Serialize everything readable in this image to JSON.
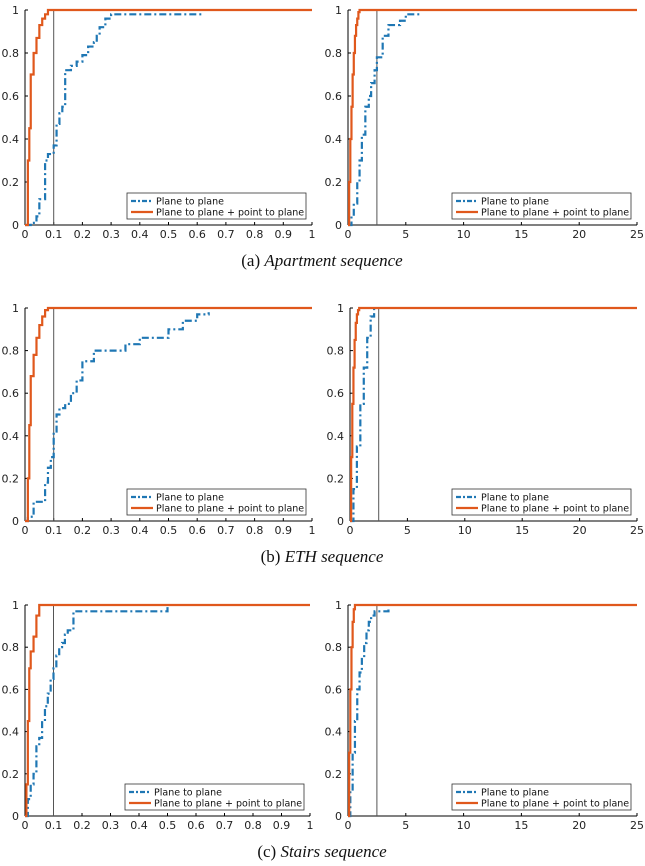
{
  "colors": {
    "series1": "#1f77b4",
    "series2": "#e0581c",
    "vline": "#555555"
  },
  "captions": [
    {
      "label": "(a)",
      "text": "Apartment sequence"
    },
    {
      "label": "(b)",
      "text": "ETH sequence"
    },
    {
      "label": "(c)",
      "text": "Stairs sequence"
    }
  ],
  "chart_data": [
    {
      "type": "line",
      "xlim": [
        0,
        1
      ],
      "ylim": [
        0,
        1
      ],
      "xticks": [
        "0",
        "0.1",
        "0.2",
        "0.3",
        "0.4",
        "0.5",
        "0.6",
        "0.7",
        "0.8",
        "0.9",
        "1"
      ],
      "yticks": [
        "0",
        "0.2",
        "0.4",
        "0.6",
        "0.8",
        "1"
      ],
      "threshold": 0.1,
      "legend_position": "bottom-right",
      "series": [
        {
          "name": "Plane to plane",
          "style": "dashdot",
          "x": [
            0,
            0.02,
            0.04,
            0.05,
            0.07,
            0.08,
            0.1,
            0.11,
            0.12,
            0.13,
            0.14,
            0.16,
            0.18,
            0.2,
            0.22,
            0.24,
            0.25,
            0.26,
            0.28,
            0.3,
            0.35,
            0.45,
            0.55,
            0.62
          ],
          "y": [
            0,
            0.01,
            0.04,
            0.12,
            0.3,
            0.33,
            0.37,
            0.47,
            0.52,
            0.55,
            0.72,
            0.74,
            0.76,
            0.79,
            0.83,
            0.85,
            0.88,
            0.92,
            0.96,
            0.98,
            0.98,
            0.98,
            0.98,
            0.98
          ]
        },
        {
          "name": "Plane to plane + point to plane",
          "style": "solid",
          "x": [
            0,
            0.01,
            0.015,
            0.02,
            0.03,
            0.04,
            0.05,
            0.06,
            0.07,
            0.08,
            0.09,
            1
          ],
          "y": [
            0,
            0.3,
            0.45,
            0.7,
            0.8,
            0.87,
            0.93,
            0.96,
            0.98,
            1,
            1,
            1
          ]
        }
      ]
    },
    {
      "type": "line",
      "xlim": [
        0,
        25
      ],
      "ylim": [
        0,
        1
      ],
      "xticks": [
        "0",
        "5",
        "10",
        "15",
        "20",
        "25"
      ],
      "yticks": [
        "0",
        "0.2",
        "0.4",
        "0.6",
        "0.8",
        "1"
      ],
      "threshold": 2.5,
      "legend_position": "bottom-right",
      "series": [
        {
          "name": "Plane to plane",
          "style": "dashdot",
          "x": [
            0,
            0.3,
            0.5,
            0.8,
            1.0,
            1.2,
            1.5,
            1.8,
            2.0,
            2.3,
            2.5,
            3.0,
            3.5,
            4.0,
            4.5,
            5.0,
            5.5,
            6.2
          ],
          "y": [
            0,
            0.04,
            0.1,
            0.2,
            0.3,
            0.42,
            0.55,
            0.6,
            0.66,
            0.72,
            0.78,
            0.88,
            0.93,
            0.93,
            0.95,
            0.98,
            0.98,
            0.98
          ]
        },
        {
          "name": "Plane to plane + point to plane",
          "style": "solid",
          "x": [
            0,
            0.1,
            0.2,
            0.3,
            0.4,
            0.5,
            0.6,
            0.7,
            0.8,
            0.9,
            1.0,
            1.2,
            25
          ],
          "y": [
            0,
            0.2,
            0.4,
            0.55,
            0.7,
            0.8,
            0.88,
            0.93,
            0.96,
            0.99,
            1,
            1,
            1
          ]
        }
      ]
    },
    {
      "type": "line",
      "xlim": [
        0,
        1
      ],
      "ylim": [
        0,
        1
      ],
      "xticks": [
        "0",
        "0.1",
        "0.2",
        "0.3",
        "0.4",
        "0.5",
        "0.6",
        "0.7",
        "0.8",
        "0.9",
        "1"
      ],
      "yticks": [
        "0",
        "0.2",
        "0.4",
        "0.6",
        "0.8",
        "1"
      ],
      "threshold": 0.1,
      "legend_position": "bottom-right",
      "series": [
        {
          "name": "Plane to plane",
          "style": "dashdot",
          "x": [
            0,
            0.01,
            0.03,
            0.05,
            0.07,
            0.08,
            0.09,
            0.1,
            0.11,
            0.12,
            0.14,
            0.16,
            0.18,
            0.2,
            0.24,
            0.3,
            0.35,
            0.4,
            0.45,
            0.5,
            0.55,
            0.6,
            0.64
          ],
          "y": [
            0,
            0.02,
            0.09,
            0.09,
            0.18,
            0.25,
            0.3,
            0.42,
            0.5,
            0.53,
            0.55,
            0.6,
            0.66,
            0.75,
            0.8,
            0.8,
            0.83,
            0.86,
            0.86,
            0.9,
            0.94,
            0.97,
            0.98
          ]
        },
        {
          "name": "Plane to plane + point to plane",
          "style": "solid",
          "x": [
            0,
            0.01,
            0.015,
            0.02,
            0.03,
            0.04,
            0.05,
            0.06,
            0.07,
            0.08,
            0.09,
            1
          ],
          "y": [
            0,
            0.2,
            0.45,
            0.68,
            0.78,
            0.86,
            0.92,
            0.96,
            0.99,
            1,
            1,
            1
          ]
        }
      ]
    },
    {
      "type": "line",
      "xlim": [
        0,
        25
      ],
      "ylim": [
        0,
        1
      ],
      "xticks": [
        "0",
        "5",
        "10",
        "15",
        "20",
        "25"
      ],
      "yticks": [
        "0",
        "0.2",
        "0.4",
        "0.6",
        "0.8",
        "1"
      ],
      "threshold": 2.5,
      "legend_position": "bottom-right",
      "series": [
        {
          "name": "Plane to plane",
          "style": "dashdot",
          "x": [
            0,
            0.3,
            0.6,
            0.9,
            1.2,
            1.5,
            1.8,
            2.1
          ],
          "y": [
            0,
            0.15,
            0.35,
            0.55,
            0.72,
            0.86,
            0.96,
            1
          ]
        },
        {
          "name": "Plane to plane + point to plane",
          "style": "solid",
          "x": [
            0,
            0.1,
            0.2,
            0.3,
            0.4,
            0.5,
            0.6,
            0.7,
            0.8,
            25
          ],
          "y": [
            0,
            0.3,
            0.55,
            0.72,
            0.85,
            0.93,
            0.97,
            0.99,
            1,
            1
          ]
        }
      ]
    },
    {
      "type": "line",
      "xlim": [
        0,
        1
      ],
      "ylim": [
        0,
        1
      ],
      "xticks": [
        "0",
        "0.1",
        "0.2",
        "0.3",
        "0.4",
        "0.5",
        "0.6",
        "0.7",
        "0.8",
        "0.9",
        "1"
      ],
      "yticks": [
        "0",
        "0.2",
        "0.4",
        "0.6",
        "0.8",
        "1"
      ],
      "threshold": 0.1,
      "legend_position": "bottom-right",
      "series": [
        {
          "name": "Plane to plane",
          "style": "dashdot",
          "x": [
            0,
            0.01,
            0.02,
            0.03,
            0.04,
            0.05,
            0.06,
            0.07,
            0.08,
            0.09,
            0.1,
            0.11,
            0.12,
            0.13,
            0.14,
            0.15,
            0.17,
            0.2,
            0.3,
            0.4,
            0.48,
            0.5
          ],
          "y": [
            0,
            0.08,
            0.15,
            0.2,
            0.33,
            0.37,
            0.45,
            0.52,
            0.58,
            0.65,
            0.7,
            0.76,
            0.8,
            0.82,
            0.86,
            0.88,
            0.97,
            0.97,
            0.97,
            0.97,
            0.97,
            0.99
          ]
        },
        {
          "name": "Plane to plane + point to plane",
          "style": "solid",
          "x": [
            0,
            0.005,
            0.01,
            0.015,
            0.02,
            0.03,
            0.04,
            0.05,
            1
          ],
          "y": [
            0,
            0.15,
            0.45,
            0.7,
            0.78,
            0.85,
            0.95,
            1,
            1
          ]
        }
      ]
    },
    {
      "type": "line",
      "xlim": [
        0,
        25
      ],
      "ylim": [
        0,
        1
      ],
      "xticks": [
        "0",
        "5",
        "10",
        "15",
        "20",
        "25"
      ],
      "yticks": [
        "0",
        "0.2",
        "0.4",
        "0.6",
        "0.8",
        "1"
      ],
      "threshold": 2.5,
      "legend_position": "bottom-right",
      "series": [
        {
          "name": "Plane to plane",
          "style": "dashdot",
          "x": [
            0,
            0.2,
            0.4,
            0.6,
            0.8,
            1.0,
            1.2,
            1.4,
            1.6,
            1.8,
            2.0,
            2.3,
            2.6,
            3.0,
            3.5
          ],
          "y": [
            0,
            0.12,
            0.3,
            0.45,
            0.6,
            0.68,
            0.75,
            0.82,
            0.88,
            0.92,
            0.95,
            0.97,
            0.97,
            0.97,
            0.99
          ]
        },
        {
          "name": "Plane to plane + point to plane",
          "style": "solid",
          "x": [
            0,
            0.1,
            0.2,
            0.3,
            0.4,
            0.5,
            0.6,
            25
          ],
          "y": [
            0,
            0.3,
            0.6,
            0.8,
            0.92,
            0.98,
            1,
            1
          ]
        }
      ]
    }
  ]
}
